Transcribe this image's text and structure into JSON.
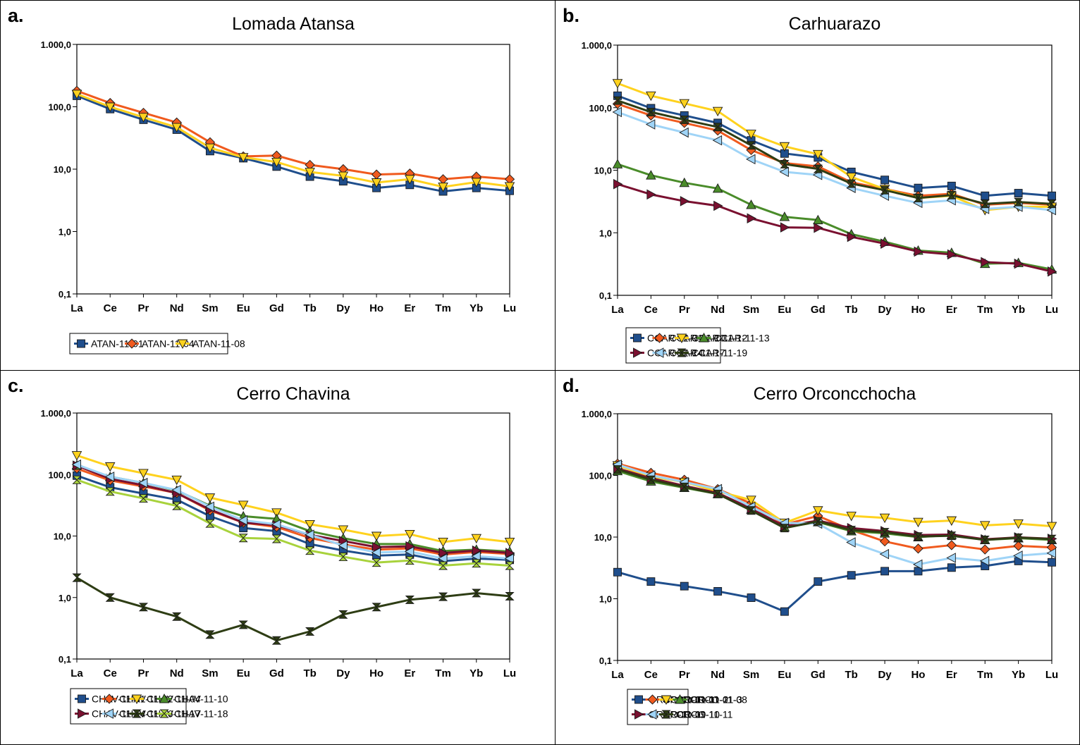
{
  "colors": {
    "blue": "#1f4e8c",
    "orange": "#f05a1e",
    "yellow": "#ffd21e",
    "green": "#4a8c2a",
    "maroon": "#7a1030",
    "lightblue": "#9fd4f7",
    "darkolive": "#2e3d14",
    "lime": "#a8d23c"
  },
  "chart_data": [
    {
      "id": "a",
      "panel_letter": "a.",
      "type": "line",
      "title": "Lomada Atansa",
      "yscale": "log",
      "ylim": [
        0.1,
        1000
      ],
      "y_ticks": [
        "0,1",
        "1,0",
        "10,0",
        "100,0",
        "1.000,0"
      ],
      "categories": [
        "La",
        "Ce",
        "Pr",
        "Nd",
        "Sm",
        "Eu",
        "Gd",
        "Tb",
        "Dy",
        "Ho",
        "Er",
        "Tm",
        "Yb",
        "Lu"
      ],
      "legend_columns": 3,
      "series": [
        {
          "name": "ATAN-11-01",
          "color": "blue",
          "marker": "square",
          "values": [
            150,
            92,
            62,
            43,
            19.5,
            15,
            11,
            7.6,
            6.4,
            5.0,
            5.6,
            4.4,
            5.0,
            4.5
          ]
        },
        {
          "name": "ATAN-11-04",
          "color": "orange",
          "marker": "diamond",
          "values": [
            180,
            115,
            80,
            56,
            27,
            16,
            16.5,
            11.7,
            10,
            8.2,
            8.5,
            6.9,
            7.6,
            6.9
          ]
        },
        {
          "name": "ATAN-11-08",
          "color": "yellow",
          "marker": "tri-down",
          "values": [
            160,
            100,
            68,
            47,
            22,
            15.5,
            13,
            9.0,
            7.8,
            6.1,
            6.9,
            5.2,
            6.2,
            5.3
          ]
        }
      ]
    },
    {
      "id": "b",
      "panel_letter": "b.",
      "type": "line",
      "title": "Carhuarazo",
      "yscale": "log",
      "ylim": [
        0.1,
        1000
      ],
      "y_ticks": [
        "0,1",
        "1,0",
        "10,0",
        "100,0",
        "1.000,0"
      ],
      "categories": [
        "La",
        "Ce",
        "Pr",
        "Nd",
        "Sm",
        "Eu",
        "Gd",
        "Tb",
        "Dy",
        "Ho",
        "Er",
        "Tm",
        "Yb",
        "Lu"
      ],
      "legend_columns": 4,
      "series": [
        {
          "name": "CCAR-11-01",
          "color": "blue",
          "marker": "square",
          "values": [
            155,
            98,
            75,
            57,
            30,
            18.5,
            16,
            9.4,
            7.0,
            5.2,
            5.6,
            3.9,
            4.3,
            3.9
          ]
        },
        {
          "name": "CCAR-11-10",
          "color": "orange",
          "marker": "diamond",
          "values": [
            115,
            75,
            57,
            43,
            21,
            13,
            11.5,
            6.4,
            5.0,
            3.9,
            4.2,
            2.8,
            3.0,
            2.8
          ]
        },
        {
          "name": "CCAR-11-12",
          "color": "yellow",
          "marker": "tri-down",
          "values": [
            245,
            155,
            117,
            88,
            38,
            24,
            18,
            7.8,
            5.0,
            3.6,
            3.9,
            2.3,
            2.6,
            2.6
          ]
        },
        {
          "name": "CCAR-11-13",
          "color": "green",
          "marker": "tri-up",
          "values": [
            12.5,
            8.3,
            6.3,
            5.1,
            2.8,
            1.8,
            1.6,
            0.95,
            0.72,
            0.52,
            0.48,
            0.32,
            0.33,
            0.26
          ]
        },
        {
          "name": "CCAR-11-14",
          "color": "maroon",
          "marker": "tri-right",
          "values": [
            6.0,
            4.1,
            3.2,
            2.7,
            1.7,
            1.22,
            1.2,
            0.86,
            0.67,
            0.5,
            0.45,
            0.34,
            0.32,
            0.24
          ]
        },
        {
          "name": "CCAR-11-17",
          "color": "lightblue",
          "marker": "tri-left",
          "values": [
            85,
            54,
            40,
            30,
            15,
            9.4,
            8.4,
            5.2,
            3.9,
            3.0,
            3.3,
            2.4,
            2.6,
            2.3
          ]
        },
        {
          "name": "CCAR-11-19",
          "color": "darkolive",
          "marker": "bowtie",
          "values": [
            130,
            85,
            64,
            49,
            25,
            12.5,
            10.5,
            6.1,
            4.8,
            3.6,
            4.0,
            2.9,
            3.1,
            2.9
          ]
        }
      ]
    },
    {
      "id": "c",
      "panel_letter": "c.",
      "type": "line",
      "title": "Cerro Chavina",
      "yscale": "log",
      "ylim": [
        0.1,
        1000
      ],
      "y_ticks": [
        "0,1",
        "1,0",
        "10,0",
        "100,0",
        "1.000,0"
      ],
      "categories": [
        "La",
        "Ce",
        "Pr",
        "Nd",
        "Sm",
        "Eu",
        "Gd",
        "Tb",
        "Dy",
        "Ho",
        "Er",
        "Tm",
        "Yb",
        "Lu"
      ],
      "legend_columns": 4,
      "series": [
        {
          "name": "CHAV-11-01",
          "color": "blue",
          "marker": "square",
          "values": [
            96,
            62,
            49,
            39,
            21,
            13.5,
            12,
            7.4,
            5.8,
            4.8,
            5.0,
            3.9,
            4.3,
            4.1
          ]
        },
        {
          "name": "CHAV-11-02",
          "color": "orange",
          "marker": "diamond",
          "values": [
            125,
            80,
            64,
            50,
            26,
            16.5,
            14,
            9.3,
            7.3,
            6.0,
            6.3,
            5.0,
            5.5,
            5.1
          ]
        },
        {
          "name": "CHAV-11-04",
          "color": "yellow",
          "marker": "tri-down",
          "values": [
            205,
            135,
            105,
            82,
            42,
            32,
            24,
            15.5,
            12.7,
            10,
            10.7,
            8.0,
            9.2,
            8.0
          ]
        },
        {
          "name": "CHAV-11-10",
          "color": "green",
          "marker": "tri-up",
          "values": [
            140,
            92,
            73,
            55,
            31,
            21,
            19,
            12,
            9.2,
            7.4,
            7.4,
            5.7,
            6.0,
            5.6
          ]
        },
        {
          "name": "CHAV-11-14",
          "color": "maroon",
          "marker": "tri-right",
          "values": [
            140,
            85,
            67,
            50,
            27,
            16.5,
            15,
            10.4,
            8.3,
            6.6,
            6.8,
            5.3,
            5.8,
            5.3
          ]
        },
        {
          "name": "CHAV-11-16",
          "color": "lightblue",
          "marker": "tri-left",
          "values": [
            145,
            92,
            73,
            56,
            30,
            18,
            15.5,
            10.5,
            7.0,
            5.4,
            5.6,
            4.3,
            4.7,
            4.3
          ]
        },
        {
          "name": "CHAV-11-17",
          "color": "darkolive",
          "marker": "bowtie",
          "values": [
            2.1,
            1.0,
            0.7,
            0.49,
            0.25,
            0.36,
            0.2,
            0.28,
            0.53,
            0.7,
            0.92,
            1.03,
            1.18,
            1.05
          ]
        },
        {
          "name": "CHAV-11-18",
          "color": "lime",
          "marker": "bowtie",
          "values": [
            82,
            53,
            41,
            31,
            16,
            9.3,
            9.0,
            5.8,
            4.6,
            3.7,
            4.0,
            3.3,
            3.6,
            3.3
          ]
        }
      ]
    },
    {
      "id": "d",
      "panel_letter": "d.",
      "type": "line",
      "title": "Cerro Orconcchocha",
      "yscale": "log",
      "ylim": [
        0.1,
        1000
      ],
      "y_ticks": [
        "0,1",
        "1,0",
        "10,0",
        "100,0",
        "1.000,0"
      ],
      "categories": [
        "La",
        "Ce",
        "Pr",
        "Nd",
        "Sm",
        "Eu",
        "Gd",
        "Tb",
        "Dy",
        "Ho",
        "Er",
        "Tm",
        "Yb",
        "Lu"
      ],
      "legend_columns": 4,
      "series": [
        {
          "name": "ORCO-11-01-1",
          "color": "blue",
          "marker": "square",
          "values": [
            2.7,
            1.9,
            1.6,
            1.32,
            1.04,
            0.62,
            1.9,
            2.4,
            2.8,
            2.8,
            3.2,
            3.4,
            4.1,
            3.9
          ]
        },
        {
          "name": "ORCO-11-01-2",
          "color": "orange",
          "marker": "diamond",
          "values": [
            155,
            110,
            85,
            60,
            35,
            16,
            22,
            13,
            8.5,
            6.5,
            7.4,
            6.3,
            7.2,
            6.8
          ]
        },
        {
          "name": "ORCO-11-01-3",
          "color": "yellow",
          "marker": "tri-down",
          "values": [
            145,
            95,
            78,
            55,
            40,
            17,
            27,
            22,
            20.5,
            17.5,
            18.5,
            15.5,
            16.5,
            15
          ]
        },
        {
          "name": "ORCO-11-08",
          "color": "green",
          "marker": "tri-up",
          "values": [
            118,
            80,
            63,
            50,
            28,
            14.5,
            17.5,
            12.5,
            11.5,
            10,
            10.8,
            9.0,
            9.6,
            9.0
          ]
        },
        {
          "name": "ORCO-11-09",
          "color": "maroon",
          "marker": "tri-right",
          "values": [
            130,
            90,
            68,
            52,
            29,
            15,
            18.5,
            14,
            12.5,
            10.8,
            11,
            9.2,
            9.9,
            9.4
          ]
        },
        {
          "name": "ORCO-11-10",
          "color": "lightblue",
          "marker": "tri-left",
          "values": [
            150,
            100,
            78,
            60,
            31,
            17,
            16.5,
            8.2,
            5.3,
            3.6,
            4.6,
            4.1,
            5.0,
            5.5
          ]
        },
        {
          "name": "ORCO-11-11",
          "color": "darkolive",
          "marker": "bowtie",
          "values": [
            125,
            85,
            65,
            50,
            27,
            14,
            18,
            13,
            12,
            10.2,
            10.5,
            9.0,
            9.8,
            9.3
          ]
        }
      ]
    }
  ]
}
